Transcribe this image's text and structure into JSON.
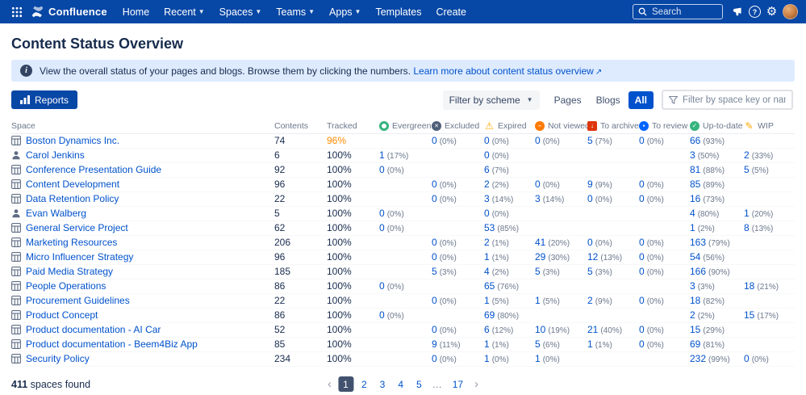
{
  "nav": {
    "brand": "Confluence",
    "items": [
      {
        "label": "Home",
        "chevron": false
      },
      {
        "label": "Recent",
        "chevron": true
      },
      {
        "label": "Spaces",
        "chevron": true
      },
      {
        "label": "Teams",
        "chevron": true
      },
      {
        "label": "Apps",
        "chevron": true
      },
      {
        "label": "Templates",
        "chevron": false
      },
      {
        "label": "Create",
        "chevron": false
      }
    ],
    "search_placeholder": "Search"
  },
  "page": {
    "title": "Content Status Overview",
    "banner_text": "View the overall status of your pages and blogs. Browse them by clicking the numbers.",
    "banner_link": "Learn more about content status overview"
  },
  "toolbar": {
    "reports": "Reports",
    "scheme_filter": "Filter by scheme",
    "tabs": [
      {
        "label": "Pages",
        "active": false
      },
      {
        "label": "Blogs",
        "active": false
      },
      {
        "label": "All",
        "active": true
      }
    ],
    "space_filter_placeholder": "Filter by space key or name"
  },
  "table": {
    "columns": [
      {
        "key": "space",
        "label": "Space",
        "icon": null
      },
      {
        "key": "contents",
        "label": "Contents",
        "icon": null
      },
      {
        "key": "tracked",
        "label": "Tracked",
        "icon": null
      },
      {
        "key": "evergreen",
        "label": "Evergreen",
        "icon": "evergreen-icon"
      },
      {
        "key": "excluded",
        "label": "Excluded",
        "icon": "excluded-icon"
      },
      {
        "key": "expired",
        "label": "Expired",
        "icon": "expired-icon"
      },
      {
        "key": "not_viewed",
        "label": "Not viewed",
        "icon": "not-viewed-icon"
      },
      {
        "key": "to_archive",
        "label": "To archive",
        "icon": "to-archive-icon"
      },
      {
        "key": "to_review",
        "label": "To review",
        "icon": "to-review-icon"
      },
      {
        "key": "up_to_date",
        "label": "Up-to-date",
        "icon": "up-to-date-icon"
      },
      {
        "key": "wip",
        "label": "WIP",
        "icon": "wip-icon"
      }
    ],
    "rows": [
      {
        "name": "Boston Dynamics Inc.",
        "type": "space",
        "contents": "74",
        "tracked": "96%",
        "tracked_warning": true,
        "evergreen": null,
        "excluded": "0 (0%)",
        "expired": "0 (0%)",
        "not_viewed": "0 (0%)",
        "to_archive": "5 (7%)",
        "to_review": "0 (0%)",
        "up_to_date": "66 (93%)",
        "wip": null
      },
      {
        "name": "Carol Jenkins",
        "type": "person",
        "contents": "6",
        "tracked": "100%",
        "tracked_warning": false,
        "evergreen": "1 (17%)",
        "excluded": null,
        "expired": "0 (0%)",
        "not_viewed": null,
        "to_archive": null,
        "to_review": null,
        "up_to_date": "3 (50%)",
        "wip": "2 (33%)"
      },
      {
        "name": "Conference Presentation Guide",
        "type": "space",
        "contents": "92",
        "tracked": "100%",
        "tracked_warning": false,
        "evergreen": "0 (0%)",
        "excluded": null,
        "expired": "6 (7%)",
        "not_viewed": null,
        "to_archive": null,
        "to_review": null,
        "up_to_date": "81 (88%)",
        "wip": "5 (5%)"
      },
      {
        "name": "Content Development",
        "type": "space",
        "contents": "96",
        "tracked": "100%",
        "tracked_warning": false,
        "evergreen": null,
        "excluded": "0 (0%)",
        "expired": "2 (2%)",
        "not_viewed": "0 (0%)",
        "to_archive": "9 (9%)",
        "to_review": "0 (0%)",
        "up_to_date": "85 (89%)",
        "wip": null
      },
      {
        "name": "Data Retention Policy",
        "type": "space",
        "contents": "22",
        "tracked": "100%",
        "tracked_warning": false,
        "evergreen": null,
        "excluded": "0 (0%)",
        "expired": "3 (14%)",
        "not_viewed": "3 (14%)",
        "to_archive": "0 (0%)",
        "to_review": "0 (0%)",
        "up_to_date": "16 (73%)",
        "wip": null
      },
      {
        "name": "Evan Walberg",
        "type": "person",
        "contents": "5",
        "tracked": "100%",
        "tracked_warning": false,
        "evergreen": "0 (0%)",
        "excluded": null,
        "expired": "0 (0%)",
        "not_viewed": null,
        "to_archive": null,
        "to_review": null,
        "up_to_date": "4 (80%)",
        "wip": "1 (20%)"
      },
      {
        "name": "General Service Project",
        "type": "space",
        "contents": "62",
        "tracked": "100%",
        "tracked_warning": false,
        "evergreen": "0 (0%)",
        "excluded": null,
        "expired": "53 (85%)",
        "not_viewed": null,
        "to_archive": null,
        "to_review": null,
        "up_to_date": "1 (2%)",
        "wip": "8 (13%)"
      },
      {
        "name": "Marketing Resources",
        "type": "space",
        "contents": "206",
        "tracked": "100%",
        "tracked_warning": false,
        "evergreen": null,
        "excluded": "0 (0%)",
        "expired": "2 (1%)",
        "not_viewed": "41 (20%)",
        "to_archive": "0 (0%)",
        "to_review": "0 (0%)",
        "up_to_date": "163 (79%)",
        "wip": null
      },
      {
        "name": "Micro Influencer Strategy",
        "type": "space",
        "contents": "96",
        "tracked": "100%",
        "tracked_warning": false,
        "evergreen": null,
        "excluded": "0 (0%)",
        "expired": "1 (1%)",
        "not_viewed": "29 (30%)",
        "to_archive": "12 (13%)",
        "to_review": "0 (0%)",
        "up_to_date": "54 (56%)",
        "wip": null
      },
      {
        "name": "Paid Media Strategy",
        "type": "space",
        "contents": "185",
        "tracked": "100%",
        "tracked_warning": false,
        "evergreen": null,
        "excluded": "5 (3%)",
        "expired": "4 (2%)",
        "not_viewed": "5 (3%)",
        "to_archive": "5 (3%)",
        "to_review": "0 (0%)",
        "up_to_date": "166 (90%)",
        "wip": null
      },
      {
        "name": "People Operations",
        "type": "space",
        "contents": "86",
        "tracked": "100%",
        "tracked_warning": false,
        "evergreen": "0 (0%)",
        "excluded": null,
        "expired": "65 (76%)",
        "not_viewed": null,
        "to_archive": null,
        "to_review": null,
        "up_to_date": "3 (3%)",
        "wip": "18 (21%)"
      },
      {
        "name": "Procurement Guidelines",
        "type": "space",
        "contents": "22",
        "tracked": "100%",
        "tracked_warning": false,
        "evergreen": null,
        "excluded": "0 (0%)",
        "expired": "1 (5%)",
        "not_viewed": "1 (5%)",
        "to_archive": "2 (9%)",
        "to_review": "0 (0%)",
        "up_to_date": "18 (82%)",
        "wip": null
      },
      {
        "name": "Product Concept",
        "type": "space",
        "contents": "86",
        "tracked": "100%",
        "tracked_warning": false,
        "evergreen": "0 (0%)",
        "excluded": null,
        "expired": "69 (80%)",
        "not_viewed": null,
        "to_archive": null,
        "to_review": null,
        "up_to_date": "2 (2%)",
        "wip": "15 (17%)"
      },
      {
        "name": "Product documentation - AI Car",
        "type": "space",
        "contents": "52",
        "tracked": "100%",
        "tracked_warning": false,
        "evergreen": null,
        "excluded": "0 (0%)",
        "expired": "6 (12%)",
        "not_viewed": "10 (19%)",
        "to_archive": "21 (40%)",
        "to_review": "0 (0%)",
        "up_to_date": "15 (29%)",
        "wip": null
      },
      {
        "name": "Product documentation - Beem4Biz App",
        "type": "space",
        "contents": "85",
        "tracked": "100%",
        "tracked_warning": false,
        "evergreen": null,
        "excluded": "9 (11%)",
        "expired": "1 (1%)",
        "not_viewed": "5 (6%)",
        "to_archive": "1 (1%)",
        "to_review": "0 (0%)",
        "up_to_date": "69 (81%)",
        "wip": null
      },
      {
        "name": "Security Policy",
        "type": "space",
        "contents": "234",
        "tracked": "100%",
        "tracked_warning": false,
        "evergreen": null,
        "excluded": "0 (0%)",
        "expired": "1 (0%)",
        "not_viewed": "1 (0%)",
        "to_archive": null,
        "to_review": null,
        "up_to_date": "232 (99%)",
        "wip": "0 (0%)"
      }
    ]
  },
  "footer": {
    "count": "411",
    "count_suffix": "spaces found",
    "pages": [
      "1",
      "2",
      "3",
      "4",
      "5",
      "…",
      "17"
    ],
    "current_page": "1"
  }
}
